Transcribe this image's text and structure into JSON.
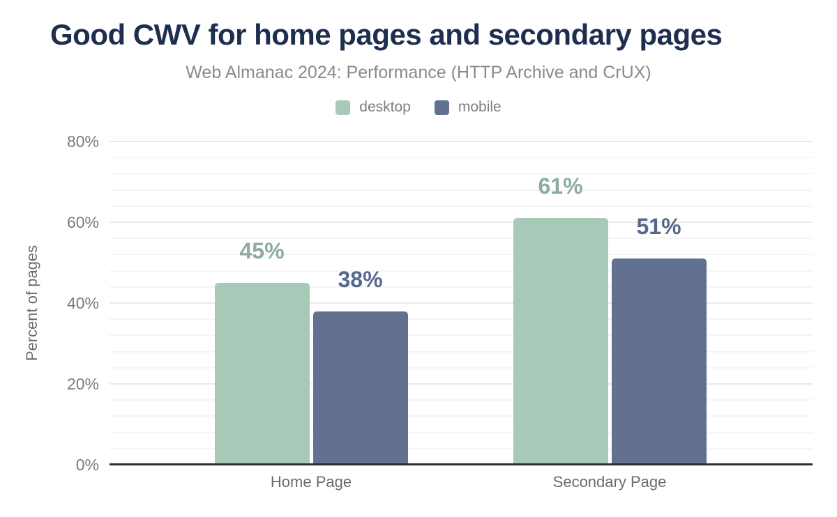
{
  "chart_data": {
    "type": "bar",
    "title": "Good CWV for home pages and secondary pages",
    "subtitle": "Web Almanac 2024: Performance (HTTP Archive and CrUX)",
    "categories": [
      "Home Page",
      "Secondary Page"
    ],
    "series": [
      {
        "name": "desktop",
        "values": [
          45,
          61
        ],
        "color": "#a8c9b8",
        "label_color": "#8caba2"
      },
      {
        "name": "mobile",
        "values": [
          38,
          51
        ],
        "color": "#61718f",
        "label_color": "#55678c"
      }
    ],
    "xlabel": "",
    "ylabel": "Percent of pages",
    "ylim": [
      0,
      80
    ],
    "yticks": [
      0,
      20,
      40,
      60,
      80
    ],
    "ytick_labels": [
      "0%",
      "20%",
      "40%",
      "60%",
      "80%"
    ],
    "value_suffix": "%",
    "grid": {
      "on": true,
      "major_step": 20,
      "minor_step": 4
    },
    "legend_position": "top-center"
  },
  "colors": {
    "title": "#1d2e4f",
    "subtitle": "#8a8a8a",
    "axis_line": "#2e2e2e",
    "tick_label": "#7b7b7b",
    "category_label": "#6b6b6b",
    "grid_major": "#e9e9e9",
    "grid_minor": "#f5f5f5",
    "background": "#ffffff"
  }
}
